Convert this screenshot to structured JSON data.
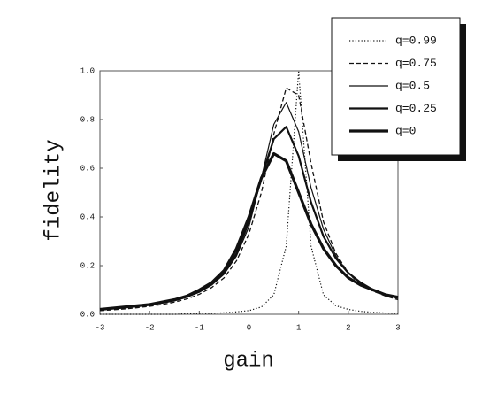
{
  "chart_data": {
    "type": "line",
    "x_label": "gain",
    "y_label": "fidelity",
    "x": [
      -3,
      -2.75,
      -2.5,
      -2.25,
      -2,
      -1.75,
      -1.5,
      -1.25,
      -1,
      -0.75,
      -0.5,
      -0.25,
      0,
      0.25,
      0.5,
      0.75,
      1,
      1.25,
      1.5,
      1.75,
      2,
      2.25,
      2.5,
      2.75,
      3
    ],
    "series": [
      {
        "name": "q=0.99",
        "color": "#111111",
        "dash": "dotted",
        "width": 1.2,
        "values": [
          0,
          0,
          0,
          0,
          0,
          0,
          0,
          0.002,
          0.003,
          0.004,
          0.006,
          0.01,
          0.015,
          0.03,
          0.08,
          0.28,
          1.0,
          0.28,
          0.08,
          0.035,
          0.02,
          0.012,
          0.008,
          0.005,
          0.004
        ]
      },
      {
        "name": "q=0.75",
        "color": "#111111",
        "dash": "dashed",
        "width": 1.3,
        "values": [
          0.015,
          0.018,
          0.022,
          0.027,
          0.033,
          0.04,
          0.05,
          0.063,
          0.082,
          0.11,
          0.15,
          0.22,
          0.33,
          0.5,
          0.74,
          0.93,
          0.9,
          0.62,
          0.38,
          0.25,
          0.17,
          0.12,
          0.095,
          0.075,
          0.06
        ]
      },
      {
        "name": "q=0.5",
        "color": "#111111",
        "dash": "solid",
        "width": 1.2,
        "values": [
          0.02,
          0.023,
          0.027,
          0.032,
          0.038,
          0.046,
          0.055,
          0.07,
          0.09,
          0.12,
          0.165,
          0.24,
          0.36,
          0.56,
          0.78,
          0.87,
          0.75,
          0.52,
          0.35,
          0.24,
          0.17,
          0.13,
          0.1,
          0.08,
          0.065
        ]
      },
      {
        "name": "q=0.25",
        "color": "#111111",
        "dash": "solid",
        "width": 2.2,
        "values": [
          0.02,
          0.024,
          0.028,
          0.033,
          0.04,
          0.048,
          0.058,
          0.072,
          0.095,
          0.125,
          0.17,
          0.25,
          0.38,
          0.56,
          0.72,
          0.77,
          0.65,
          0.46,
          0.32,
          0.23,
          0.17,
          0.13,
          0.1,
          0.08,
          0.07
        ]
      },
      {
        "name": "q=0",
        "color": "#111111",
        "dash": "solid",
        "width": 3.2,
        "values": [
          0.02,
          0.025,
          0.03,
          0.035,
          0.04,
          0.05,
          0.06,
          0.075,
          0.1,
          0.13,
          0.18,
          0.27,
          0.4,
          0.56,
          0.66,
          0.63,
          0.5,
          0.37,
          0.27,
          0.2,
          0.15,
          0.12,
          0.1,
          0.08,
          0.07
        ]
      }
    ],
    "xlim": [
      -3,
      3
    ],
    "ylim": [
      0,
      1
    ],
    "xticks": [
      -3,
      -2,
      -1,
      0,
      1,
      2,
      3
    ],
    "yticks": [
      {
        "value": 0,
        "label": "0.0"
      },
      0.2,
      0.4,
      0.6,
      0.8,
      {
        "value": 1,
        "label": "1.0"
      }
    ],
    "legend": "upper right"
  }
}
